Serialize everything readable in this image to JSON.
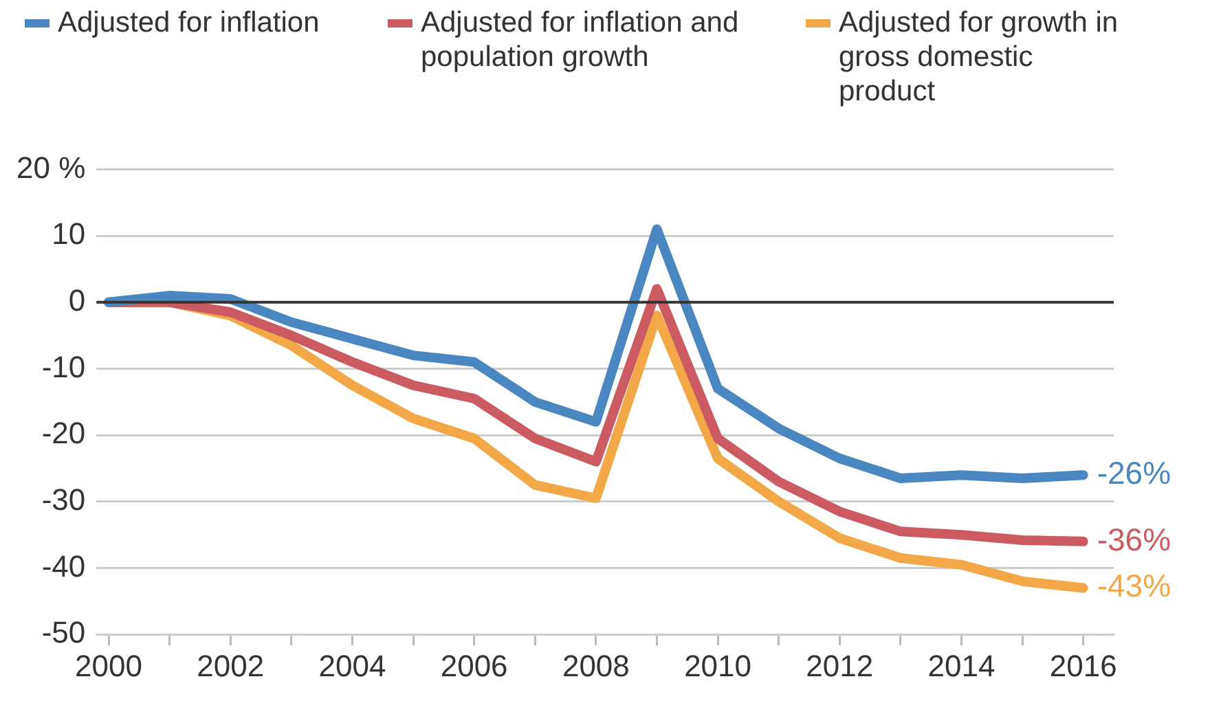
{
  "chart_data": {
    "type": "line",
    "x": [
      2000,
      2001,
      2002,
      2003,
      2004,
      2005,
      2006,
      2007,
      2008,
      2009,
      2010,
      2011,
      2012,
      2013,
      2014,
      2015,
      2016
    ],
    "series": [
      {
        "name": "Adjusted for inflation",
        "color": "#4a86c0",
        "values": [
          0,
          1,
          0.5,
          -3,
          -5.5,
          -8,
          -9,
          -15,
          -18,
          11,
          -13,
          -19,
          -23.5,
          -26.5,
          -26,
          -26.5,
          -26
        ],
        "value_labels": [
          null,
          null,
          null,
          null,
          null,
          null,
          null,
          null,
          null,
          null,
          null,
          null,
          null,
          null,
          null,
          null,
          "-26%"
        ]
      },
      {
        "name": "Adjusted for inflation and population growth",
        "color": "#cc5a62",
        "values": [
          0,
          0,
          -1.5,
          -5,
          -9,
          -12.5,
          -14.5,
          -20.5,
          -24,
          2,
          -20.5,
          -27,
          -31.5,
          -34.5,
          -35,
          -35.8,
          -36
        ],
        "value_labels": [
          null,
          null,
          null,
          null,
          null,
          null,
          null,
          null,
          null,
          null,
          null,
          null,
          null,
          null,
          null,
          null,
          "-36%"
        ]
      },
      {
        "name": "Adjusted for growth in gross domestic product",
        "color": "#f2a846",
        "values": [
          0,
          0,
          -2,
          -6.5,
          -12.5,
          -17.5,
          -20.5,
          -27.5,
          -29.5,
          -2,
          -23.5,
          -30,
          -35.5,
          -38.5,
          -39.5,
          -42,
          -43
        ],
        "value_labels": [
          null,
          null,
          null,
          null,
          null,
          null,
          null,
          null,
          null,
          null,
          null,
          null,
          null,
          null,
          null,
          null,
          "-43%"
        ]
      }
    ],
    "xlim": [
      1999.8,
      2016.5
    ],
    "xticks": [
      2000,
      {
        "value": 2001,
        "label": null
      },
      2002,
      {
        "value": 2003,
        "label": null
      },
      2004,
      {
        "value": 2005,
        "label": null
      },
      2006,
      {
        "value": 2007,
        "label": null
      },
      2008,
      {
        "value": 2009,
        "label": null
      },
      2010,
      {
        "value": 2011,
        "label": null
      },
      2012,
      {
        "value": 2013,
        "label": null
      },
      2014,
      {
        "value": 2015,
        "label": null
      },
      2016
    ],
    "ylim": [
      -50,
      20
    ],
    "yticks": [
      -50,
      -40,
      -30,
      -20,
      -10,
      0,
      10,
      {
        "value": 20,
        "label": "20 %"
      }
    ],
    "ref_lines": [
      {
        "axis": "y",
        "value": 0,
        "color": "#333333"
      }
    ],
    "grid": "y",
    "legend": "top",
    "marker": "none",
    "line_style": "solid"
  }
}
